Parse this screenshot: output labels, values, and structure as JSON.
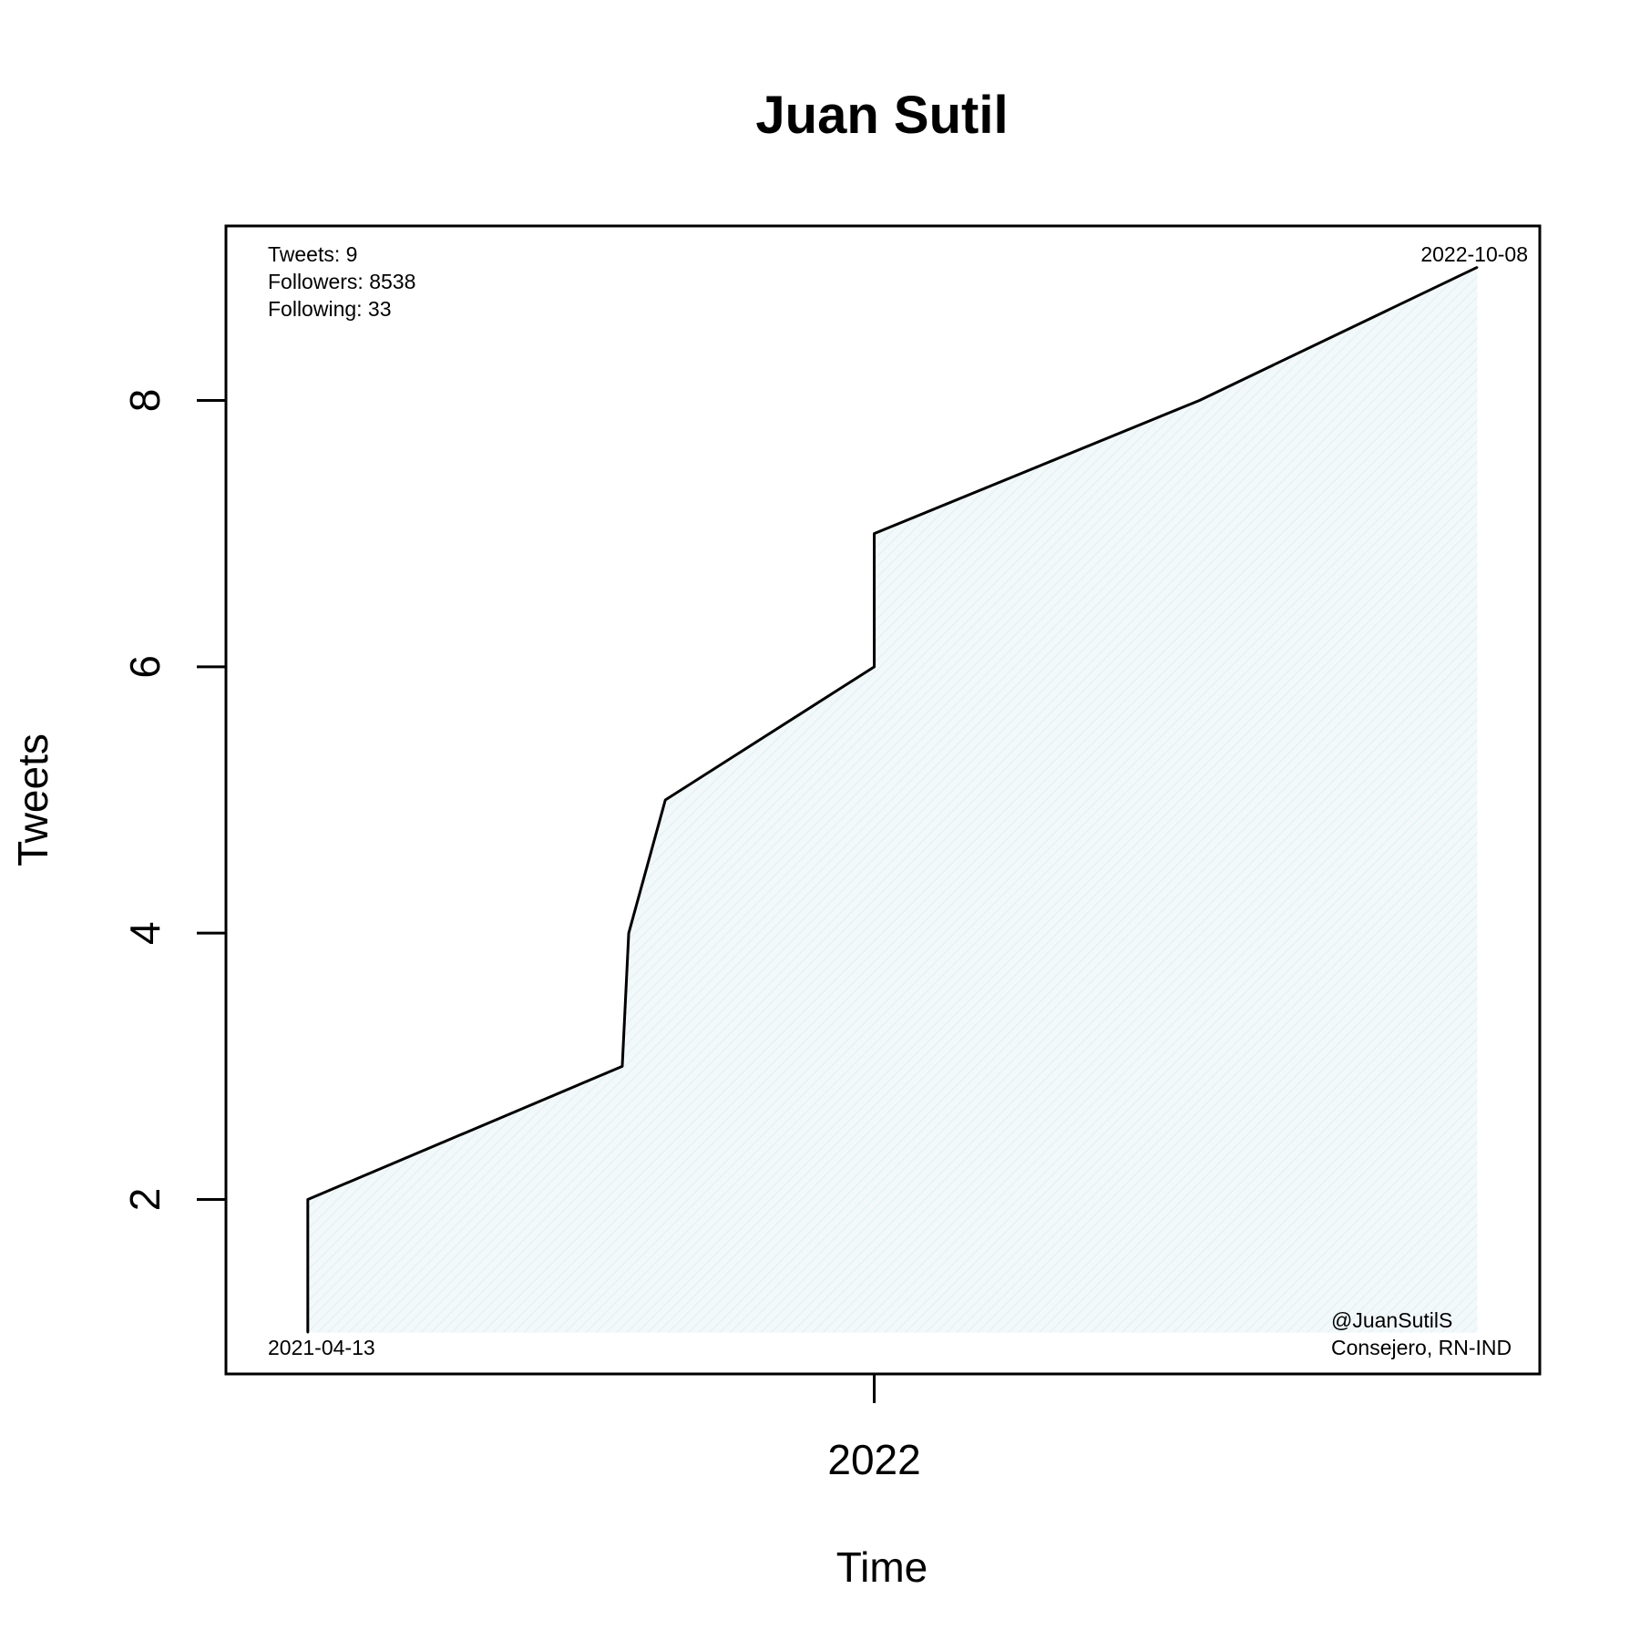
{
  "chart_data": {
    "type": "area",
    "title": "Juan Sutil",
    "xlabel": "Time",
    "ylabel": "Tweets",
    "x": [
      "2021-04-13",
      "2021-04-13",
      "2021-09-06",
      "2021-09-09",
      "2021-09-26",
      "2022-01-01",
      "2022-01-01",
      "2022-06-01",
      "2022-10-08"
    ],
    "y": [
      1,
      2,
      3,
      4,
      5,
      6,
      7,
      8,
      9
    ],
    "xlim": [
      "2021-03-06",
      "2022-11-06"
    ],
    "ylim": [
      0.69,
      9.31
    ],
    "x_ticks": [
      {
        "date": "2022-01-01",
        "label": "2022"
      }
    ],
    "y_ticks": [
      2,
      4,
      6,
      8
    ],
    "grid": false,
    "legend": "none",
    "fill_color": "#e6f2f5",
    "line_color": "#000000",
    "annotations": {
      "stats": [
        "Tweets: 9",
        "Followers: 8538",
        "Following: 33"
      ],
      "start_date": "2021-04-13",
      "end_date": "2022-10-08",
      "handle": "@JuanSutilS",
      "role": "Consejero, RN-IND"
    }
  }
}
